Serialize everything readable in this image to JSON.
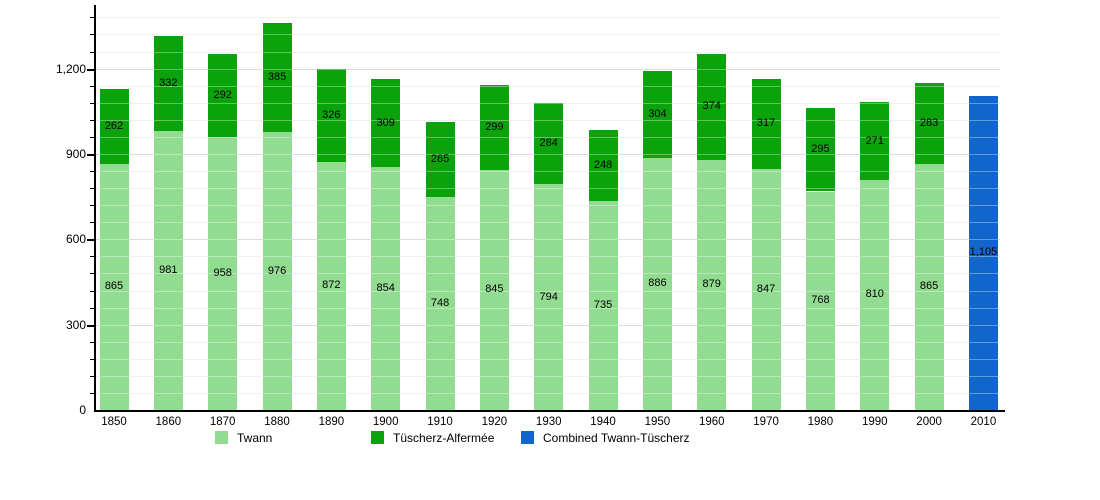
{
  "chart_data": {
    "type": "bar",
    "stacked": true,
    "title": "",
    "xlabel": "",
    "ylabel": "",
    "grid": true,
    "legend_position": "bottom",
    "categories": [
      "1850",
      "1860",
      "1870",
      "1880",
      "1890",
      "1900",
      "1910",
      "1920",
      "1930",
      "1940",
      "1950",
      "1960",
      "1970",
      "1980",
      "1990",
      "2000",
      "2010"
    ],
    "series": [
      {
        "name": "Twann",
        "color": "#92dc92",
        "values": [
          865,
          981,
          958,
          976,
          872,
          854,
          748,
          845,
          794,
          735,
          886,
          879,
          847,
          768,
          810,
          865,
          null
        ]
      },
      {
        "name": "Tüscherz-Alfermée",
        "color": "#0ba30b",
        "values": [
          262,
          332,
          292,
          385,
          326,
          309,
          265,
          299,
          284,
          248,
          304,
          374,
          317,
          295,
          271,
          283,
          null
        ]
      },
      {
        "name": "Combined Twann-Tüscherz",
        "color": "#1266cb",
        "values": [
          null,
          null,
          null,
          null,
          null,
          null,
          null,
          null,
          null,
          null,
          null,
          null,
          null,
          null,
          null,
          null,
          1105
        ]
      }
    ],
    "ylim": [
      0,
      1420
    ],
    "yticks_major": [
      0,
      300,
      600,
      900,
      1200
    ],
    "minor_step": 60,
    "colors": {
      "minor_grid": "#eaeaea",
      "major_grid": "#c9c9c9",
      "axis": "#000000"
    }
  }
}
